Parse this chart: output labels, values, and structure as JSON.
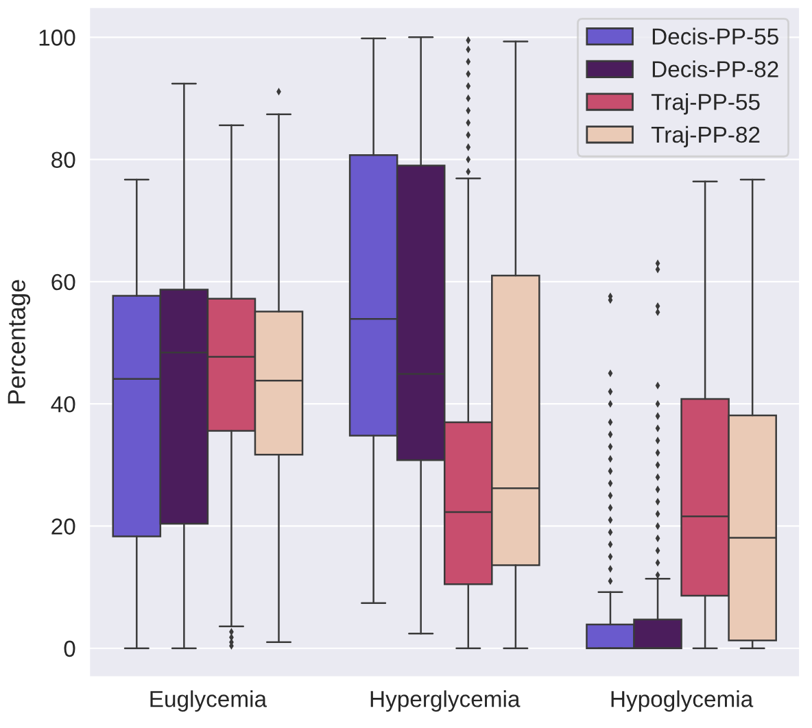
{
  "chart_data": {
    "type": "box",
    "ylabel": "Percentage",
    "categories": [
      "Euglycemia",
      "Hyperglycemia",
      "Hypoglycemia"
    ],
    "ylim": [
      -4.7,
      104.9
    ],
    "yticks": [
      0,
      20,
      40,
      60,
      80,
      100
    ],
    "grid": "y",
    "legend": "top right",
    "series": [
      {
        "name": "Decis-PP-55",
        "color": "#6a5acd",
        "boxes": [
          {
            "low": 0,
            "q1": 18.3,
            "median": 44.1,
            "q3": 57.7,
            "high": 76.7
          },
          {
            "low": 7.4,
            "q1": 34.8,
            "median": 53.9,
            "q3": 80.7,
            "high": 99.8
          },
          {
            "low": 0,
            "q1": 0,
            "median": 0,
            "q3": 3.9,
            "high": 9.2,
            "outliers": [
              11,
              13,
              15,
              17,
              19,
              21,
              23,
              25,
              27,
              29,
              31,
              33,
              35,
              37,
              40,
              42,
              45,
              57,
              57.6
            ]
          }
        ]
      },
      {
        "name": "Decis-PP-82",
        "color": "#4b1d5c",
        "boxes": [
          {
            "low": 0,
            "q1": 20.4,
            "median": 48.4,
            "q3": 58.7,
            "high": 92.4
          },
          {
            "low": 2.4,
            "q1": 30.8,
            "median": 44.9,
            "q3": 79.0,
            "high": 100
          },
          {
            "low": 0,
            "q1": 0,
            "median": 0,
            "q3": 4.7,
            "high": 11.4,
            "outliers": [
              12,
              14,
              16,
              18,
              20,
              22,
              24,
              26,
              28,
              30,
              32,
              34,
              36,
              38,
              40,
              43,
              55,
              56,
              62,
              63
            ]
          }
        ]
      },
      {
        "name": "Traj-PP-55",
        "color": "#c84e6e",
        "boxes": [
          {
            "low": 3.6,
            "q1": 35.6,
            "median": 47.7,
            "q3": 57.2,
            "high": 85.6,
            "outliers": [
              2.7,
              1.8,
              1,
              0.4
            ]
          },
          {
            "low": 0,
            "q1": 10.5,
            "median": 22.3,
            "q3": 37.0,
            "high": 76.9,
            "outliers": [
              78,
              80,
              82,
              84,
              86,
              88,
              90,
              92,
              94,
              96,
              98,
              99.5
            ]
          },
          {
            "low": 0,
            "q1": 8.6,
            "median": 21.6,
            "q3": 40.8,
            "high": 76.4
          }
        ]
      },
      {
        "name": "Traj-PP-82",
        "color": "#eacab6",
        "boxes": [
          {
            "low": 1.0,
            "q1": 31.7,
            "median": 43.8,
            "q3": 55.1,
            "high": 87.4,
            "outliers": [
              91.1
            ]
          },
          {
            "low": 0,
            "q1": 13.6,
            "median": 26.2,
            "q3": 61.0,
            "high": 99.3
          },
          {
            "low": 0,
            "q1": 1.3,
            "median": 18.1,
            "q3": 38.1,
            "high": 76.7
          }
        ]
      }
    ]
  }
}
